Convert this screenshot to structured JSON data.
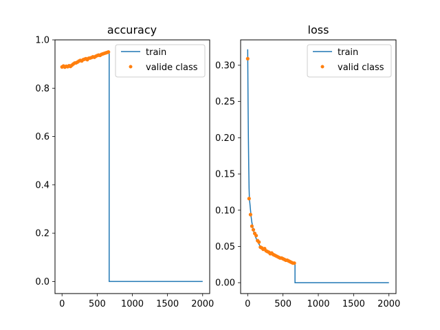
{
  "colors": {
    "train": "#1f77b4",
    "valid": "#ff7f0e",
    "axis": "#000000",
    "legend_border": "#cccccc"
  },
  "chart_data": [
    {
      "type": "line",
      "title": "accuracy",
      "xlabel": "",
      "ylabel": "",
      "xlim": [
        -100,
        2100
      ],
      "ylim": [
        -0.05,
        1.0
      ],
      "xticks": [
        0,
        500,
        1000,
        1500,
        2000
      ],
      "xtick_labels": [
        "0",
        "500",
        "1000",
        "1500",
        "2000"
      ],
      "yticks": [
        0.0,
        0.2,
        0.4,
        0.6,
        0.8,
        1.0
      ],
      "ytick_labels": [
        "0.0",
        "0.2",
        "0.4",
        "0.6",
        "0.8",
        "1.0"
      ],
      "legend_position": "top-right",
      "series": [
        {
          "name": "train",
          "style": "line",
          "x": [
            0,
            25,
            50,
            75,
            100,
            125,
            150,
            175,
            200,
            225,
            250,
            275,
            300,
            325,
            350,
            375,
            400,
            425,
            450,
            475,
            500,
            525,
            550,
            575,
            600,
            625,
            650,
            670,
            670,
            2000
          ],
          "y": [
            0.89,
            0.893,
            0.892,
            0.894,
            0.891,
            0.895,
            0.897,
            0.902,
            0.905,
            0.91,
            0.913,
            0.915,
            0.918,
            0.92,
            0.922,
            0.925,
            0.927,
            0.93,
            0.932,
            0.934,
            0.936,
            0.938,
            0.94,
            0.942,
            0.944,
            0.946,
            0.948,
            0.95,
            0.0,
            0.0
          ]
        },
        {
          "name": "valide class",
          "style": "points",
          "x": [
            0,
            20,
            40,
            60,
            80,
            100,
            120,
            140,
            160,
            180,
            200,
            220,
            240,
            260,
            280,
            300,
            320,
            340,
            360,
            380,
            400,
            420,
            440,
            460,
            480,
            500,
            520,
            540,
            560,
            580,
            600,
            620,
            640,
            660
          ],
          "y": [
            0.888,
            0.892,
            0.887,
            0.891,
            0.889,
            0.893,
            0.89,
            0.895,
            0.9,
            0.904,
            0.905,
            0.908,
            0.912,
            0.915,
            0.913,
            0.918,
            0.92,
            0.922,
            0.918,
            0.924,
            0.925,
            0.927,
            0.93,
            0.928,
            0.932,
            0.935,
            0.937,
            0.936,
            0.94,
            0.942,
            0.944,
            0.946,
            0.948,
            0.95
          ]
        }
      ]
    },
    {
      "type": "line",
      "title": "loss",
      "xlabel": "",
      "ylabel": "",
      "xlim": [
        -100,
        2100
      ],
      "ylim": [
        -0.015,
        0.335
      ],
      "xticks": [
        0,
        500,
        1000,
        1500,
        2000
      ],
      "xtick_labels": [
        "0",
        "500",
        "1000",
        "1500",
        "2000"
      ],
      "yticks": [
        0.0,
        0.05,
        0.1,
        0.15,
        0.2,
        0.25,
        0.3
      ],
      "ytick_labels": [
        "0.00",
        "0.05",
        "0.10",
        "0.15",
        "0.20",
        "0.25",
        "0.30"
      ],
      "legend_position": "top-right",
      "series": [
        {
          "name": "train",
          "style": "line",
          "x": [
            0,
            5,
            10,
            15,
            20,
            25,
            30,
            40,
            50,
            60,
            80,
            100,
            120,
            140,
            160,
            180,
            200,
            250,
            300,
            350,
            400,
            450,
            500,
            550,
            600,
            650,
            670,
            670,
            2000
          ],
          "y": [
            0.322,
            0.25,
            0.2,
            0.16,
            0.13,
            0.115,
            0.11,
            0.1,
            0.09,
            0.083,
            0.073,
            0.066,
            0.061,
            0.057,
            0.053,
            0.05,
            0.048,
            0.045,
            0.042,
            0.04,
            0.038,
            0.036,
            0.034,
            0.032,
            0.03,
            0.028,
            0.027,
            0.0,
            0.0
          ]
        },
        {
          "name": "valid class",
          "style": "points",
          "x": [
            0,
            20,
            40,
            60,
            80,
            100,
            120,
            140,
            160,
            180,
            200,
            220,
            240,
            260,
            280,
            300,
            320,
            340,
            360,
            380,
            400,
            420,
            440,
            460,
            480,
            500,
            520,
            540,
            560,
            580,
            600,
            620,
            640,
            660
          ],
          "y": [
            0.309,
            0.116,
            0.094,
            0.078,
            0.073,
            0.068,
            0.065,
            0.058,
            0.056,
            0.049,
            0.048,
            0.046,
            0.047,
            0.044,
            0.043,
            0.042,
            0.04,
            0.041,
            0.039,
            0.038,
            0.037,
            0.036,
            0.035,
            0.034,
            0.034,
            0.033,
            0.032,
            0.031,
            0.031,
            0.03,
            0.029,
            0.028,
            0.027,
            0.027
          ]
        }
      ]
    }
  ]
}
